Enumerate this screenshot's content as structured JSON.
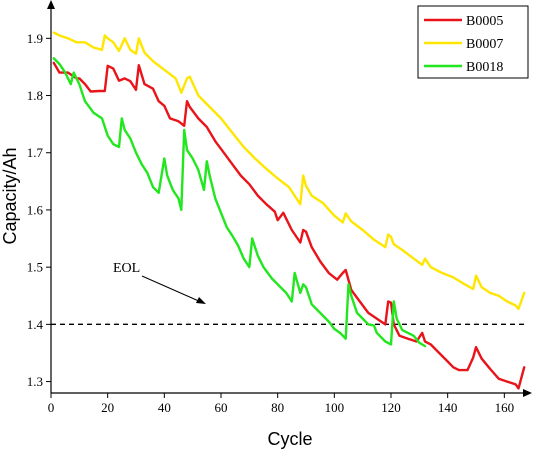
{
  "chart_data": {
    "type": "line",
    "title": "",
    "xlabel": "Cycle",
    "ylabel": "Capacity/Ah",
    "xlim": [
      0,
      168
    ],
    "ylim": [
      1.28,
      1.96
    ],
    "xticks": [
      0,
      20,
      40,
      60,
      80,
      100,
      120,
      140,
      160
    ],
    "yticks": [
      1.3,
      1.4,
      1.5,
      1.6,
      1.7,
      1.8,
      1.9
    ],
    "xtick_labels": [
      "0",
      "20",
      "40",
      "60",
      "80",
      "100",
      "120",
      "140",
      "160"
    ],
    "ytick_labels": [
      "1.3",
      "1.4",
      "1.5",
      "1.6",
      "1.7",
      "1.8",
      "1.9"
    ],
    "grid": false,
    "legend_position": "top-right",
    "threshold": {
      "label": "EOL",
      "value": 1.4,
      "style": "dashed"
    },
    "series": [
      {
        "name": "B0005",
        "color": "#e8141a",
        "x": [
          1,
          3,
          6,
          9,
          10,
          12,
          14,
          17,
          19,
          20,
          22,
          24,
          26,
          28,
          30,
          31,
          33,
          36,
          38,
          40,
          42,
          45,
          47,
          48,
          49,
          52,
          55,
          58,
          61,
          64,
          67,
          70,
          73,
          76,
          79,
          80,
          82,
          85,
          88,
          89,
          90,
          92,
          95,
          98,
          101,
          103,
          104,
          106,
          109,
          112,
          115,
          118,
          119,
          120,
          121,
          123,
          126,
          129,
          131,
          132,
          134,
          137,
          140,
          142,
          144,
          147,
          149,
          150,
          152,
          155,
          158,
          161,
          164,
          165,
          167
        ],
        "y": [
          1.857,
          1.84,
          1.84,
          1.83,
          1.83,
          1.82,
          1.807,
          1.808,
          1.808,
          1.852,
          1.847,
          1.826,
          1.83,
          1.825,
          1.81,
          1.853,
          1.82,
          1.812,
          1.79,
          1.782,
          1.76,
          1.755,
          1.747,
          1.79,
          1.78,
          1.76,
          1.745,
          1.72,
          1.7,
          1.68,
          1.66,
          1.645,
          1.625,
          1.61,
          1.597,
          1.582,
          1.595,
          1.565,
          1.543,
          1.565,
          1.562,
          1.535,
          1.51,
          1.49,
          1.478,
          1.49,
          1.495,
          1.46,
          1.44,
          1.42,
          1.41,
          1.4,
          1.44,
          1.438,
          1.4,
          1.38,
          1.375,
          1.37,
          1.385,
          1.37,
          1.365,
          1.35,
          1.335,
          1.325,
          1.32,
          1.32,
          1.342,
          1.36,
          1.34,
          1.322,
          1.305,
          1.3,
          1.295,
          1.288,
          1.325
        ]
      },
      {
        "name": "B0007",
        "color": "#ffe600",
        "x": [
          1,
          3,
          6,
          9,
          12,
          15,
          18,
          19,
          20,
          22,
          24,
          26,
          28,
          30,
          31,
          33,
          36,
          40,
          44,
          46,
          48,
          49,
          52,
          56,
          60,
          64,
          68,
          72,
          76,
          80,
          84,
          88,
          89,
          90,
          92,
          96,
          100,
          103,
          104,
          106,
          110,
          114,
          118,
          119,
          120,
          121,
          124,
          128,
          131,
          132,
          134,
          138,
          142,
          146,
          149,
          150,
          152,
          155,
          158,
          161,
          164,
          165,
          167
        ],
        "y": [
          1.91,
          1.905,
          1.9,
          1.893,
          1.893,
          1.884,
          1.88,
          1.905,
          1.9,
          1.893,
          1.878,
          1.9,
          1.88,
          1.873,
          1.9,
          1.875,
          1.86,
          1.845,
          1.83,
          1.805,
          1.83,
          1.833,
          1.8,
          1.78,
          1.76,
          1.735,
          1.71,
          1.69,
          1.672,
          1.655,
          1.64,
          1.61,
          1.66,
          1.642,
          1.625,
          1.612,
          1.59,
          1.578,
          1.594,
          1.58,
          1.565,
          1.548,
          1.535,
          1.557,
          1.553,
          1.54,
          1.53,
          1.515,
          1.504,
          1.515,
          1.5,
          1.49,
          1.482,
          1.47,
          1.462,
          1.485,
          1.465,
          1.455,
          1.45,
          1.44,
          1.433,
          1.427,
          1.455
        ]
      },
      {
        "name": "B0018",
        "color": "#22e61e",
        "x": [
          1,
          3,
          5,
          7,
          8,
          10,
          12,
          15,
          18,
          20,
          22,
          24,
          25,
          26,
          28,
          30,
          32,
          34,
          36,
          38,
          40,
          41,
          43,
          45,
          46,
          47,
          48,
          50,
          52,
          54,
          55,
          56,
          58,
          60,
          62,
          64,
          66,
          68,
          70,
          71,
          73,
          75,
          78,
          80,
          83,
          85,
          86,
          88,
          89,
          90,
          92,
          95,
          98,
          100,
          102,
          104,
          105,
          106,
          108,
          110,
          112,
          114,
          115,
          116,
          118,
          120,
          121,
          122,
          124,
          126,
          128,
          130,
          132
        ],
        "y": [
          1.865,
          1.855,
          1.84,
          1.82,
          1.84,
          1.82,
          1.79,
          1.77,
          1.76,
          1.73,
          1.715,
          1.71,
          1.76,
          1.74,
          1.725,
          1.7,
          1.68,
          1.665,
          1.64,
          1.63,
          1.69,
          1.66,
          1.635,
          1.62,
          1.6,
          1.74,
          1.705,
          1.69,
          1.67,
          1.635,
          1.685,
          1.66,
          1.62,
          1.595,
          1.57,
          1.555,
          1.538,
          1.515,
          1.5,
          1.55,
          1.52,
          1.5,
          1.48,
          1.47,
          1.455,
          1.44,
          1.49,
          1.455,
          1.47,
          1.465,
          1.435,
          1.42,
          1.405,
          1.392,
          1.385,
          1.375,
          1.47,
          1.45,
          1.42,
          1.41,
          1.4,
          1.398,
          1.385,
          1.38,
          1.37,
          1.365,
          1.44,
          1.41,
          1.39,
          1.385,
          1.38,
          1.368,
          1.362
        ]
      }
    ]
  }
}
